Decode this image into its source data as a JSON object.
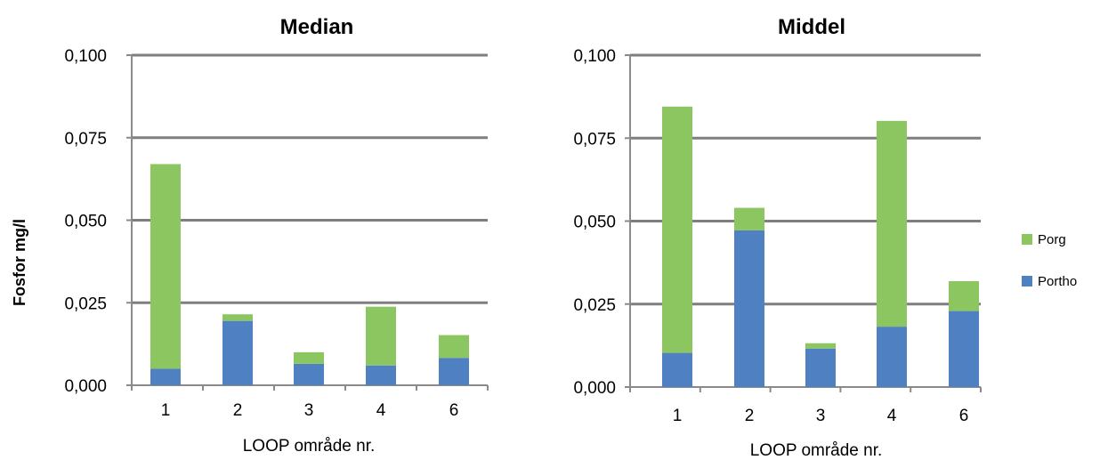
{
  "colors": {
    "porg": "#8cc660",
    "portho": "#4f81c2",
    "grid": "#7f7f7f",
    "axis": "#8a8a8a"
  },
  "chart_data": [
    {
      "type": "bar",
      "stacked": true,
      "title": "Median",
      "ylabel": "Fosfor  mg/l",
      "xlabel": "LOOP område nr.",
      "categories": [
        "1",
        "2",
        "3",
        "4",
        "6"
      ],
      "ylim": [
        0,
        0.1
      ],
      "yticks": [
        "0,000",
        "0,025",
        "0,050",
        "0,075",
        "0,100"
      ],
      "grid": true,
      "series": [
        {
          "name": "Portho",
          "values": [
            0.005,
            0.0195,
            0.0065,
            0.006,
            0.0083
          ]
        },
        {
          "name": "Porg",
          "values": [
            0.062,
            0.002,
            0.0035,
            0.0178,
            0.0069
          ]
        }
      ]
    },
    {
      "type": "bar",
      "stacked": true,
      "title": "Middel",
      "xlabel": "LOOP område nr.",
      "categories": [
        "1",
        "2",
        "3",
        "4",
        "6"
      ],
      "ylim": [
        0,
        0.1
      ],
      "yticks": [
        "0,000",
        "0,025",
        "0,050",
        "0,075",
        "0,100"
      ],
      "grid": true,
      "series": [
        {
          "name": "Portho",
          "values": [
            0.0103,
            0.0472,
            0.0116,
            0.0182,
            0.0229
          ]
        },
        {
          "name": "Porg",
          "values": [
            0.0742,
            0.0068,
            0.0016,
            0.062,
            0.009
          ]
        }
      ]
    }
  ],
  "legend": {
    "position": "right",
    "items": [
      {
        "label": "Porg",
        "color_key": "porg"
      },
      {
        "label": "Portho",
        "color_key": "portho"
      }
    ]
  }
}
